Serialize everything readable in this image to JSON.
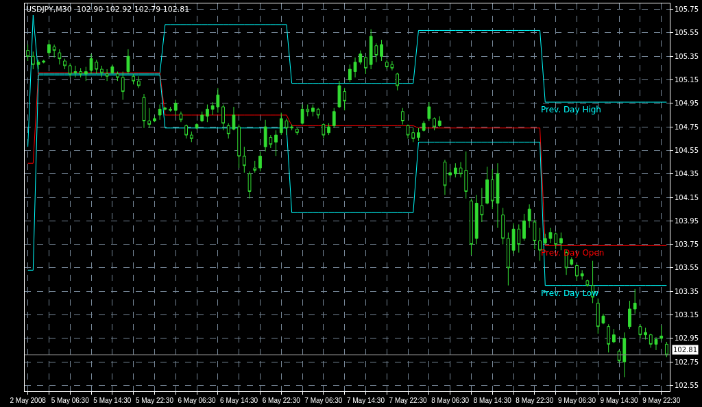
{
  "chart_data": {
    "type": "candlestick",
    "title": "USDJPY,M30  102.90 102.92 102.79 102.81",
    "color": "#32dc32",
    "categories": [
      "2 May 2008",
      null,
      null,
      null,
      null,
      null,
      null,
      null,
      "5 May 06:30",
      null,
      null,
      null,
      null,
      null,
      null,
      null,
      "5 May 14:30",
      null,
      null,
      null,
      null,
      null,
      null,
      null,
      "5 May 22:30",
      null,
      null,
      null,
      null,
      null,
      null,
      null,
      "6 May 06:30",
      null,
      null,
      null,
      null,
      null,
      null,
      null,
      "6 May 14:30",
      null,
      null,
      null,
      null,
      null,
      null,
      null,
      "6 May 22:30",
      null,
      null,
      null,
      null,
      null,
      null,
      null,
      "7 May 06:30",
      null,
      null,
      null,
      null,
      null,
      null,
      null,
      "7 May 14:30",
      null,
      null,
      null,
      null,
      null,
      null,
      null,
      "7 May 22:30",
      null,
      null,
      null,
      null,
      null,
      null,
      null,
      "8 May 06:30",
      null,
      null,
      null,
      null,
      null,
      null,
      null,
      "8 May 14:30",
      null,
      null,
      null,
      null,
      null,
      null,
      null,
      "8 May 22:30",
      null,
      null,
      null,
      null,
      null,
      null,
      null,
      "9 May 06:30",
      null,
      null,
      null,
      null,
      null,
      null,
      null,
      "9 May 14:30",
      null,
      null,
      null,
      null,
      null,
      null,
      null,
      "9 May 22:30",
      null
    ],
    "ohlc": [
      [
        105.4,
        105.45,
        105.31,
        105.35
      ],
      [
        105.35,
        105.39,
        105.24,
        105.28
      ],
      [
        105.28,
        105.32,
        105.24,
        105.3
      ],
      [
        105.3,
        105.32,
        105.29,
        105.31
      ],
      [
        105.38,
        105.49,
        105.35,
        105.45
      ],
      [
        105.43,
        105.45,
        105.34,
        105.4
      ],
      [
        105.38,
        105.41,
        105.28,
        105.33
      ],
      [
        105.31,
        105.33,
        105.24,
        105.27
      ],
      [
        105.27,
        105.29,
        105.17,
        105.2
      ],
      [
        105.21,
        105.27,
        105.17,
        105.22
      ],
      [
        105.22,
        105.25,
        105.17,
        105.2
      ],
      [
        105.2,
        105.26,
        105.14,
        105.22
      ],
      [
        105.23,
        105.37,
        105.2,
        105.33
      ],
      [
        105.3,
        105.32,
        105.2,
        105.24
      ],
      [
        105.24,
        105.27,
        105.17,
        105.21
      ],
      [
        105.2,
        105.24,
        105.14,
        105.18
      ],
      [
        105.21,
        105.28,
        105.2,
        105.26
      ],
      [
        105.2,
        105.22,
        105.14,
        105.17
      ],
      [
        105.17,
        105.22,
        104.98,
        105.05
      ],
      [
        105.22,
        105.41,
        105.2,
        105.35
      ],
      [
        105.18,
        105.2,
        105.11,
        105.14
      ],
      [
        105.14,
        105.18,
        105.08,
        105.1
      ],
      [
        105.0,
        105.03,
        104.74,
        104.8
      ],
      [
        104.8,
        104.91,
        104.74,
        104.77
      ],
      [
        104.8,
        104.84,
        104.79,
        104.82
      ],
      [
        104.85,
        104.94,
        104.81,
        104.9
      ],
      [
        104.9,
        104.92,
        104.89,
        104.91
      ],
      [
        104.9,
        104.92,
        104.88,
        104.89
      ],
      [
        104.89,
        104.98,
        104.85,
        104.95
      ],
      [
        104.86,
        104.88,
        104.79,
        104.81
      ],
      [
        104.76,
        104.77,
        104.65,
        104.68
      ],
      [
        104.68,
        104.71,
        104.62,
        104.65
      ],
      [
        104.74,
        104.78,
        104.73,
        104.77
      ],
      [
        104.8,
        104.88,
        104.79,
        104.85
      ],
      [
        104.84,
        104.94,
        104.79,
        104.9
      ],
      [
        104.9,
        104.96,
        104.85,
        104.93
      ],
      [
        104.92,
        105.08,
        104.87,
        105.02
      ],
      [
        104.92,
        104.94,
        104.72,
        104.78
      ],
      [
        104.76,
        104.78,
        104.65,
        104.69
      ],
      [
        104.73,
        104.92,
        104.72,
        104.85
      ],
      [
        104.75,
        104.77,
        104.4,
        104.5
      ],
      [
        104.5,
        104.58,
        104.36,
        104.42
      ],
      [
        104.35,
        104.37,
        104.14,
        104.2
      ],
      [
        104.4,
        104.46,
        104.36,
        104.38
      ],
      [
        104.4,
        104.54,
        104.37,
        104.5
      ],
      [
        104.58,
        104.81,
        104.54,
        104.75
      ],
      [
        104.66,
        104.68,
        104.57,
        104.6
      ],
      [
        104.62,
        104.72,
        104.5,
        104.68
      ],
      [
        104.7,
        104.87,
        104.68,
        104.82
      ],
      [
        104.8,
        104.82,
        104.68,
        104.74
      ],
      [
        104.74,
        104.77,
        104.72,
        104.75
      ],
      [
        104.73,
        104.74,
        104.68,
        104.7
      ],
      [
        104.78,
        104.94,
        104.77,
        104.9
      ],
      [
        104.9,
        104.94,
        104.84,
        104.88
      ],
      [
        104.88,
        104.94,
        104.84,
        104.91
      ],
      [
        104.9,
        104.91,
        104.82,
        104.85
      ],
      [
        104.77,
        104.78,
        104.65,
        104.68
      ],
      [
        104.7,
        104.78,
        104.68,
        104.75
      ],
      [
        104.76,
        104.91,
        104.74,
        104.88
      ],
      [
        104.92,
        105.14,
        104.91,
        105.1
      ],
      [
        105.05,
        105.08,
        104.89,
        104.97
      ],
      [
        105.15,
        105.28,
        105.13,
        105.24
      ],
      [
        105.22,
        105.34,
        105.17,
        105.3
      ],
      [
        105.3,
        105.4,
        105.28,
        105.37
      ],
      [
        105.34,
        105.35,
        105.2,
        105.25
      ],
      [
        105.28,
        105.58,
        105.24,
        105.52
      ],
      [
        105.44,
        105.46,
        105.3,
        105.36
      ],
      [
        105.35,
        105.49,
        105.31,
        105.45
      ],
      [
        105.3,
        105.32,
        105.24,
        105.26
      ],
      [
        105.28,
        105.31,
        105.23,
        105.25
      ],
      [
        105.2,
        105.21,
        105.06,
        105.1
      ],
      [
        104.88,
        104.91,
        104.77,
        104.8
      ],
      [
        104.76,
        104.77,
        104.65,
        104.68
      ],
      [
        104.7,
        104.74,
        104.62,
        104.65
      ],
      [
        104.66,
        104.74,
        104.63,
        104.7
      ],
      [
        104.72,
        104.8,
        104.71,
        104.78
      ],
      [
        104.82,
        104.96,
        104.8,
        104.92
      ],
      [
        104.82,
        104.83,
        104.72,
        104.75
      ],
      [
        104.76,
        104.84,
        104.75,
        104.8
      ],
      [
        104.45,
        104.47,
        104.17,
        104.25
      ],
      [
        104.34,
        104.39,
        104.32,
        104.36
      ],
      [
        104.35,
        104.44,
        104.32,
        104.4
      ],
      [
        104.4,
        104.45,
        104.32,
        104.35
      ],
      [
        104.38,
        104.54,
        104.14,
        104.2
      ],
      [
        104.12,
        104.14,
        103.66,
        103.75
      ],
      [
        103.8,
        104.17,
        103.75,
        104.1
      ],
      [
        104.08,
        104.23,
        103.94,
        104.0
      ],
      [
        104.1,
        104.41,
        104.09,
        104.3
      ],
      [
        104.3,
        104.39,
        104.05,
        104.12
      ],
      [
        104.1,
        104.44,
        103.89,
        104.35
      ],
      [
        104.0,
        104.06,
        103.75,
        103.8
      ],
      [
        103.8,
        103.85,
        103.4,
        103.55
      ],
      [
        103.7,
        103.93,
        103.67,
        103.88
      ],
      [
        103.88,
        103.92,
        103.68,
        103.75
      ],
      [
        103.8,
        104.01,
        103.78,
        103.95
      ],
      [
        103.95,
        104.09,
        103.89,
        104.05
      ],
      [
        103.94,
        103.96,
        103.71,
        103.78
      ],
      [
        103.78,
        103.89,
        103.61,
        103.7
      ],
      [
        103.76,
        103.84,
        103.75,
        103.8
      ],
      [
        103.8,
        103.89,
        103.76,
        103.85
      ],
      [
        103.84,
        103.85,
        103.71,
        103.75
      ],
      [
        103.76,
        103.85,
        103.7,
        103.8
      ],
      [
        103.68,
        103.7,
        103.49,
        103.55
      ],
      [
        103.58,
        103.64,
        103.57,
        103.62
      ],
      [
        103.57,
        103.58,
        103.44,
        103.48
      ],
      [
        103.48,
        103.53,
        103.45,
        103.5
      ],
      [
        103.44,
        103.45,
        103.39,
        103.4
      ],
      [
        103.4,
        103.61,
        103.25,
        103.3
      ],
      [
        103.25,
        103.29,
        102.99,
        103.05
      ],
      [
        103.08,
        103.16,
        103.07,
        103.14
      ],
      [
        103.05,
        103.07,
        102.83,
        102.9
      ],
      [
        102.92,
        103.03,
        102.91,
        102.98
      ],
      [
        102.84,
        102.85,
        102.74,
        102.76
      ],
      [
        102.75,
        103.0,
        102.62,
        102.95
      ],
      [
        103.05,
        103.27,
        103.03,
        103.2
      ],
      [
        103.2,
        103.37,
        103.16,
        103.25
      ],
      [
        103.05,
        103.07,
        102.95,
        102.98
      ],
      [
        102.98,
        103.04,
        102.94,
        103.0
      ],
      [
        102.98,
        102.99,
        102.87,
        102.9
      ],
      [
        102.9,
        102.96,
        102.85,
        102.94
      ],
      [
        102.95,
        103.06,
        102.93,
        102.97
      ],
      [
        102.9,
        102.92,
        102.79,
        102.81
      ]
    ],
    "series": [
      {
        "type": "line",
        "name": "Prev. Day High",
        "color": "#00ffff",
        "values": [
          104.58,
          105.7,
          105.2,
          105.2,
          105.2,
          105.2,
          105.2,
          105.2,
          105.2,
          105.2,
          105.2,
          105.2,
          105.2,
          105.2,
          105.2,
          105.2,
          105.2,
          105.2,
          105.2,
          105.2,
          105.2,
          105.2,
          105.2,
          105.2,
          105.2,
          105.2,
          105.62,
          105.62,
          105.62,
          105.62,
          105.62,
          105.62,
          105.62,
          105.62,
          105.62,
          105.62,
          105.62,
          105.62,
          105.62,
          105.62,
          105.62,
          105.62,
          105.62,
          105.62,
          105.62,
          105.62,
          105.62,
          105.62,
          105.62,
          105.62,
          105.12,
          105.12,
          105.12,
          105.12,
          105.12,
          105.12,
          105.12,
          105.12,
          105.12,
          105.12,
          105.12,
          105.12,
          105.12,
          105.12,
          105.12,
          105.12,
          105.12,
          105.12,
          105.12,
          105.12,
          105.12,
          105.12,
          105.12,
          105.12,
          105.57,
          105.57,
          105.57,
          105.57,
          105.57,
          105.57,
          105.57,
          105.57,
          105.57,
          105.57,
          105.57,
          105.57,
          105.57,
          105.57,
          105.57,
          105.57,
          105.57,
          105.57,
          105.57,
          105.57,
          105.57,
          105.57,
          105.57,
          105.57,
          104.96,
          104.96,
          104.96,
          104.96,
          104.96,
          104.96,
          104.96,
          104.96,
          104.96,
          104.96,
          104.96,
          104.96,
          104.96,
          104.96,
          104.96,
          104.96,
          104.96,
          104.96,
          104.96,
          104.96,
          104.96,
          104.96,
          104.96,
          104.96
        ]
      },
      {
        "type": "line",
        "name": "Prev. Day Open",
        "color": "#ff0000",
        "values": [
          104.44,
          104.44,
          105.21,
          105.21,
          105.21,
          105.21,
          105.21,
          105.21,
          105.21,
          105.21,
          105.21,
          105.21,
          105.21,
          105.21,
          105.21,
          105.21,
          105.21,
          105.21,
          105.21,
          105.21,
          105.21,
          105.21,
          105.21,
          105.21,
          105.21,
          105.21,
          104.85,
          104.85,
          104.85,
          104.85,
          104.85,
          104.85,
          104.85,
          104.85,
          104.85,
          104.85,
          104.85,
          104.85,
          104.85,
          104.85,
          104.85,
          104.85,
          104.85,
          104.85,
          104.85,
          104.85,
          104.85,
          104.85,
          104.85,
          104.85,
          104.76,
          104.76,
          104.76,
          104.76,
          104.76,
          104.76,
          104.76,
          104.76,
          104.76,
          104.76,
          104.76,
          104.76,
          104.76,
          104.76,
          104.76,
          104.76,
          104.76,
          104.76,
          104.76,
          104.76,
          104.76,
          104.76,
          104.76,
          104.76,
          104.74,
          104.74,
          104.74,
          104.74,
          104.74,
          104.74,
          104.74,
          104.74,
          104.74,
          104.74,
          104.74,
          104.74,
          104.74,
          104.74,
          104.74,
          104.74,
          104.74,
          104.74,
          104.74,
          104.74,
          104.74,
          104.74,
          104.74,
          104.74,
          103.74,
          103.74,
          103.74,
          103.74,
          103.74,
          103.74,
          103.74,
          103.74,
          103.74,
          103.74,
          103.74,
          103.74,
          103.74,
          103.74,
          103.74,
          103.74,
          103.74,
          103.74,
          103.74,
          103.74,
          103.74,
          103.74,
          103.74,
          103.74
        ]
      },
      {
        "type": "line",
        "name": "Prev. Day Low",
        "color": "#00ffff",
        "values": [
          103.53,
          103.53,
          105.19,
          105.19,
          105.19,
          105.19,
          105.19,
          105.19,
          105.19,
          105.19,
          105.19,
          105.19,
          105.19,
          105.19,
          105.19,
          105.19,
          105.19,
          105.19,
          105.19,
          105.19,
          105.19,
          105.19,
          105.19,
          105.19,
          105.19,
          105.19,
          104.74,
          104.74,
          104.74,
          104.74,
          104.74,
          104.74,
          104.74,
          104.74,
          104.74,
          104.74,
          104.74,
          104.74,
          104.74,
          104.74,
          104.74,
          104.74,
          104.74,
          104.74,
          104.74,
          104.74,
          104.74,
          104.74,
          104.74,
          104.74,
          104.02,
          104.02,
          104.02,
          104.02,
          104.02,
          104.02,
          104.02,
          104.02,
          104.02,
          104.02,
          104.02,
          104.02,
          104.02,
          104.02,
          104.02,
          104.02,
          104.02,
          104.02,
          104.02,
          104.02,
          104.02,
          104.02,
          104.02,
          104.02,
          104.62,
          104.62,
          104.62,
          104.62,
          104.62,
          104.62,
          104.62,
          104.62,
          104.62,
          104.62,
          104.62,
          104.62,
          104.62,
          104.62,
          104.62,
          104.62,
          104.62,
          104.62,
          104.62,
          104.62,
          104.62,
          104.62,
          104.62,
          104.62,
          103.4,
          103.4,
          103.4,
          103.4,
          103.4,
          103.4,
          103.4,
          103.4,
          103.4,
          103.4,
          103.4,
          103.4,
          103.4,
          103.4,
          103.4,
          103.4,
          103.4,
          103.4,
          103.4,
          103.4,
          103.4,
          103.4,
          103.4,
          103.4
        ]
      }
    ],
    "ref_lines": [
      {
        "axis": "y",
        "value": 102.81,
        "label": "102.81",
        "color": "#808080"
      }
    ],
    "ylim": [
      102.5,
      105.8
    ],
    "yticks": [
      102.55,
      102.75,
      102.95,
      103.15,
      103.35,
      103.55,
      103.75,
      103.95,
      104.15,
      104.35,
      104.55,
      104.75,
      104.95,
      105.15,
      105.35,
      105.55,
      105.75
    ],
    "grid": true,
    "legend": false,
    "marker": "none",
    "line_style": "solid"
  }
}
